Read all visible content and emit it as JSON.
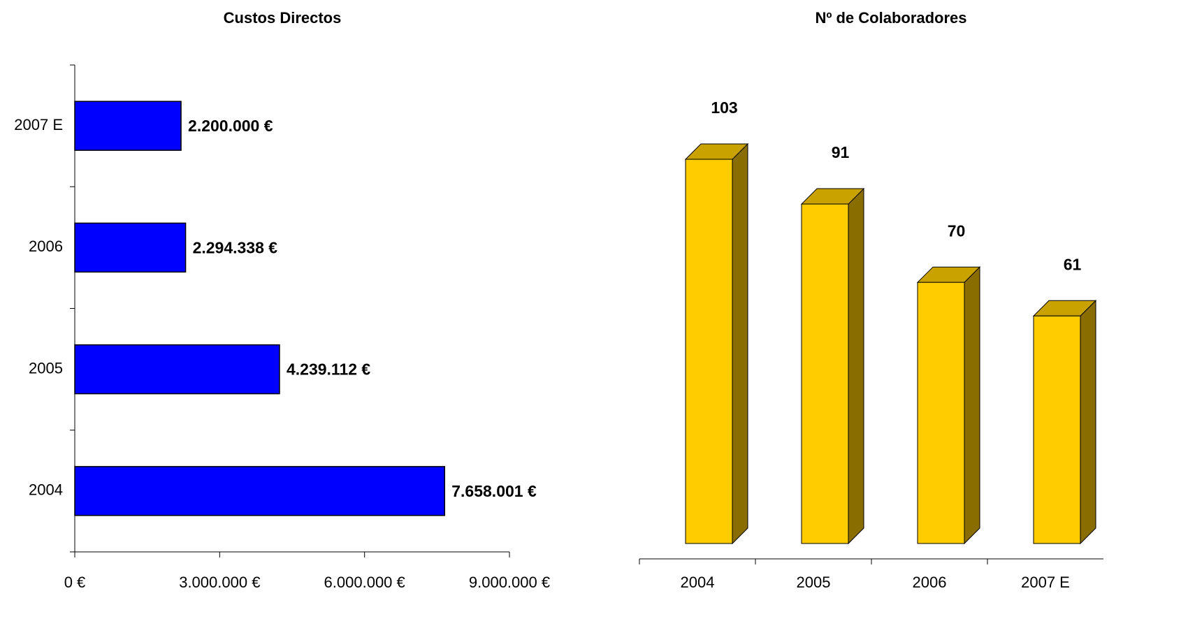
{
  "chart_data": [
    {
      "type": "hbar",
      "title": "Custos Directos",
      "categories": [
        "2004",
        "2005",
        "2006",
        "2007 E"
      ],
      "values": [
        7658001,
        4239112,
        2294338,
        2200000
      ],
      "value_labels": [
        "7.658.001 €",
        "4.239.112 €",
        "2.294.338 €",
        "2.200.000 €"
      ],
      "color": "#0000ff",
      "xlim": [
        0,
        9000000
      ],
      "xticks": [
        {
          "value": 0,
          "label": "0 €"
        },
        {
          "value": 3000000,
          "label": "3.000.000 €"
        },
        {
          "value": 6000000,
          "label": "6.000.000 €"
        },
        {
          "value": 9000000,
          "label": "9.000.000 €"
        }
      ]
    },
    {
      "type": "bar3d",
      "title": "Nº de Colaboradores",
      "categories": [
        "2004",
        "2005",
        "2006",
        "2007 E"
      ],
      "values": [
        103,
        91,
        70,
        61
      ],
      "color": "#ffcc00"
    }
  ]
}
